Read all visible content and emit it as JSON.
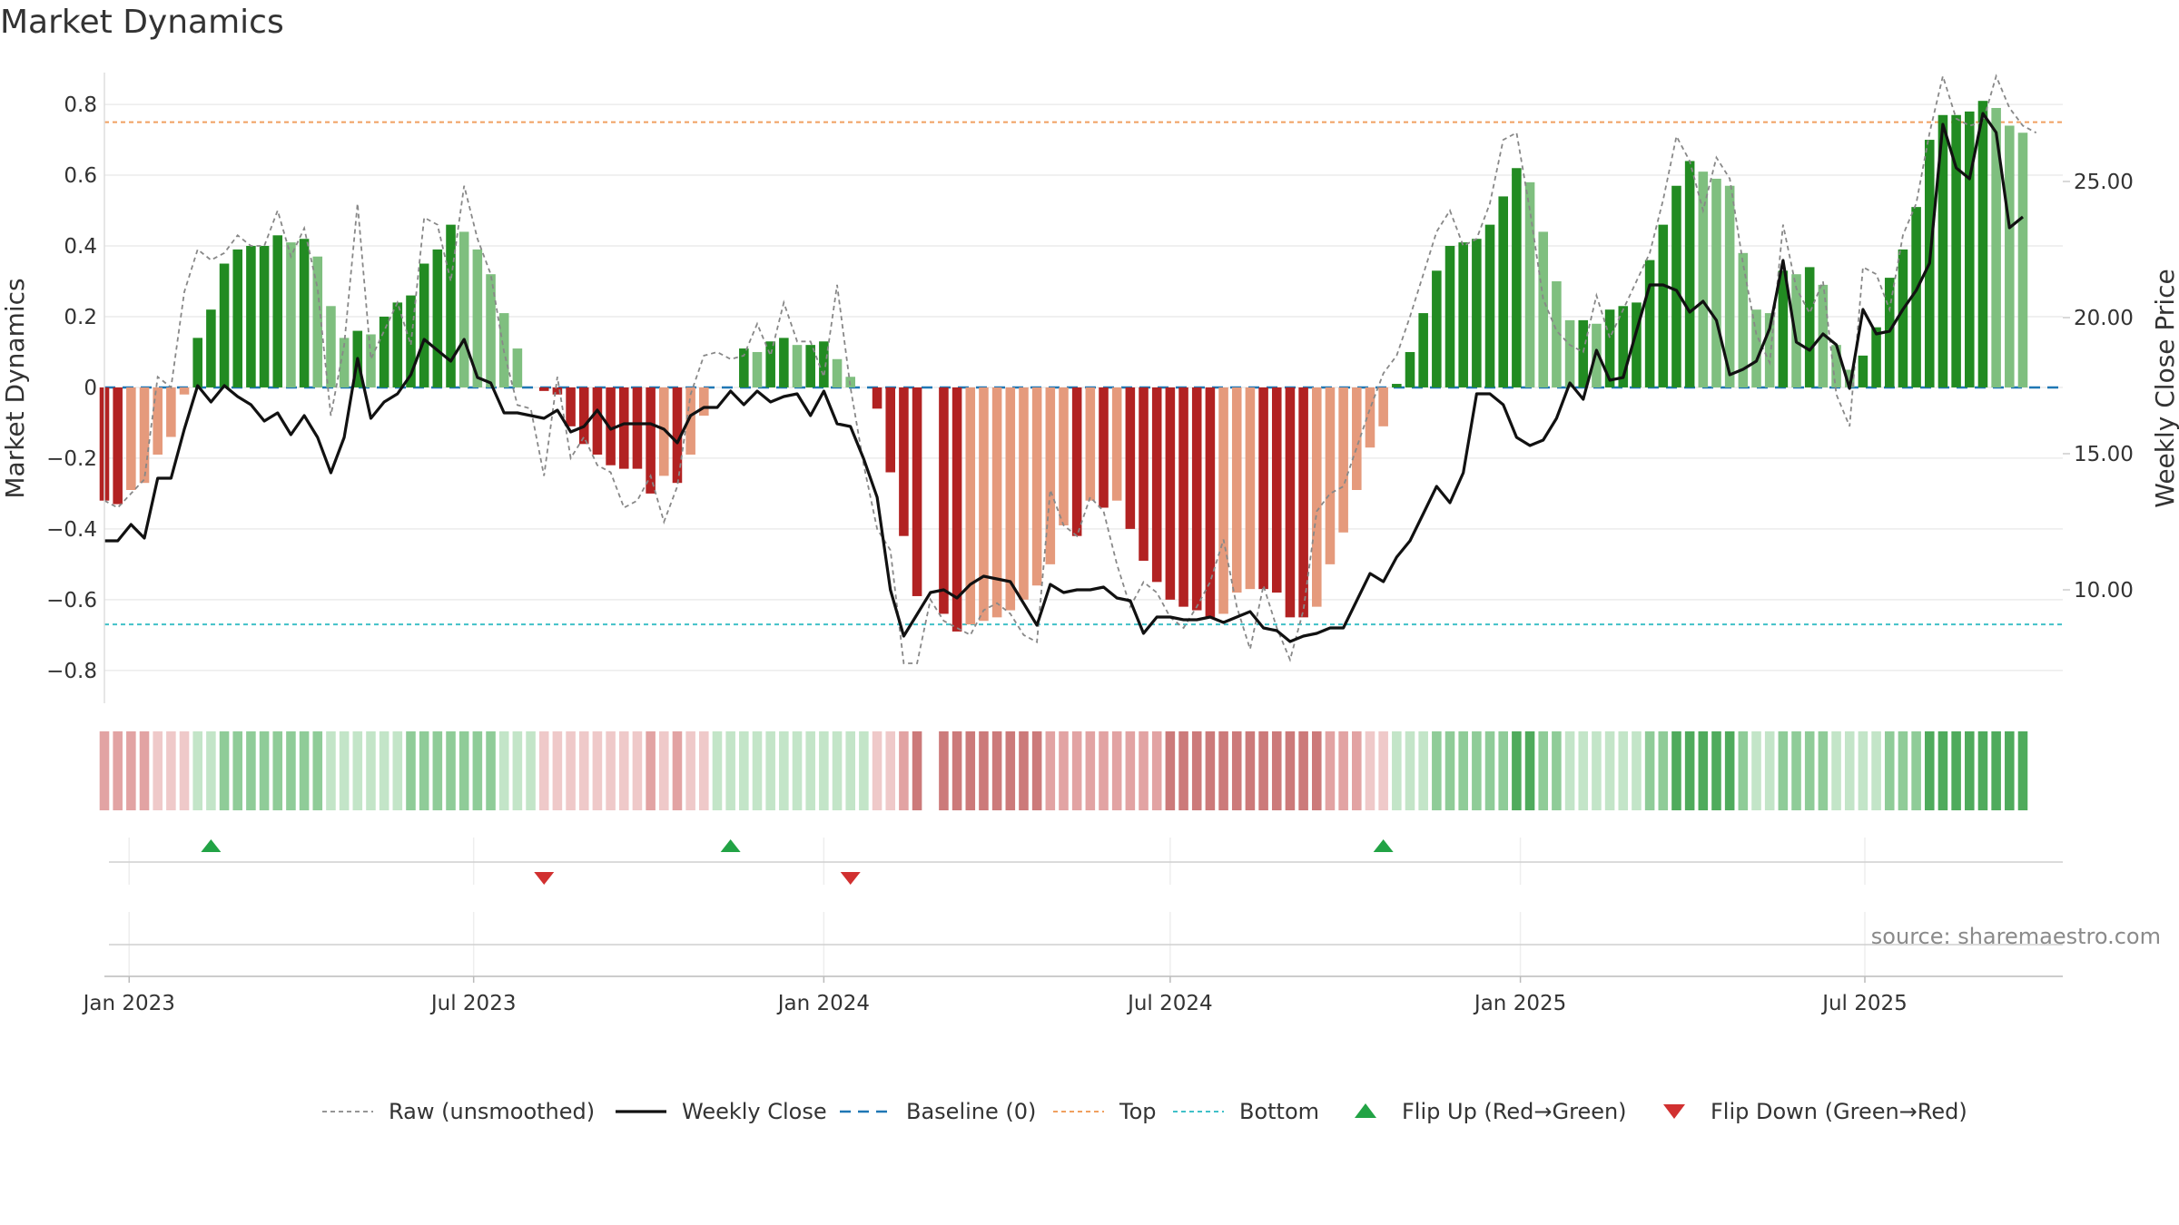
{
  "title": "Market Dynamics",
  "source": "source: sharemaestro.com",
  "chart_data": {
    "type": "bar",
    "title": "Market Dynamics",
    "ylabel_left": "Market Dynamics",
    "ylabel_right": "Weekly Close Price",
    "ylim_left": [
      -0.88,
      0.89
    ],
    "ylim_right": [
      6.0,
      29.0
    ],
    "left_ticks": [
      "0.8",
      "0.6",
      "0.4",
      "0.2",
      "0",
      "−0.2",
      "−0.4",
      "−0.6",
      "−0.8"
    ],
    "left_tick_values": [
      0.8,
      0.6,
      0.4,
      0.2,
      0,
      -0.2,
      -0.4,
      -0.6,
      -0.8
    ],
    "right_ticks": [
      "25.00",
      "20.00",
      "15.00",
      "10.00"
    ],
    "right_tick_values": [
      25,
      20,
      15,
      10
    ],
    "x_ticks": [
      "Jan 2023",
      "Jul 2023",
      "Jan 2024",
      "Jul 2024",
      "Jan 2025",
      "Jul 2025"
    ],
    "x_tick_dates": [
      "2023-01-01",
      "2023-07-01",
      "2024-01-01",
      "2024-07-01",
      "2025-01-01",
      "2025-07-01"
    ],
    "x_start": "2022-12-19",
    "x_end": "2025-10-13",
    "top_threshold": 0.75,
    "bottom_threshold": -0.67,
    "bar_colors": {
      "strong_green": "#228b22",
      "light_green": "#7fbf7f",
      "strong_red": "#b22222",
      "light_red": "#e59a7c"
    },
    "weeks_start": "2022-12-19",
    "bar_values": [
      -0.32,
      -0.33,
      -0.29,
      -0.27,
      -0.19,
      -0.14,
      -0.02,
      0.14,
      0.22,
      0.35,
      0.39,
      0.4,
      0.4,
      0.43,
      0.41,
      0.42,
      0.37,
      0.23,
      0.14,
      0.16,
      0.15,
      0.2,
      0.24,
      0.26,
      0.35,
      0.39,
      0.46,
      0.44,
      0.39,
      0.32,
      0.21,
      0.11,
      0.0,
      -0.01,
      -0.02,
      -0.11,
      -0.16,
      -0.19,
      -0.22,
      -0.23,
      -0.23,
      -0.3,
      -0.25,
      -0.27,
      -0.19,
      -0.08,
      0.0,
      0.0,
      0.11,
      0.1,
      0.13,
      0.14,
      0.12,
      0.12,
      0.13,
      0.08,
      0.03,
      0.0,
      -0.06,
      -0.24,
      -0.42,
      -0.59,
      0.0,
      -0.64,
      -0.69,
      -0.67,
      -0.66,
      -0.65,
      -0.63,
      -0.6,
      -0.56,
      -0.5,
      -0.39,
      -0.42,
      -0.32,
      -0.34,
      -0.32,
      -0.4,
      -0.49,
      -0.55,
      -0.6,
      -0.62,
      -0.63,
      -0.65,
      -0.64,
      -0.58,
      -0.57,
      -0.57,
      -0.58,
      -0.65,
      -0.65,
      -0.62,
      -0.5,
      -0.41,
      -0.29,
      -0.17,
      -0.11,
      0.01,
      0.1,
      0.21,
      0.33,
      0.4,
      0.41,
      0.42,
      0.46,
      0.54,
      0.62,
      0.58,
      0.44,
      0.3,
      0.19,
      0.19,
      0.18,
      0.22,
      0.23,
      0.24,
      0.36,
      0.46,
      0.57,
      0.64,
      0.61,
      0.59,
      0.57,
      0.38,
      0.22,
      0.21,
      0.33,
      0.32,
      0.34,
      0.29,
      0.12,
      0.05,
      0.09,
      0.17,
      0.31,
      0.39,
      0.51,
      0.7,
      0.77,
      0.77,
      0.78,
      0.81,
      0.79,
      0.74,
      0.72
    ],
    "raw_values": [
      -0.32,
      -0.34,
      -0.3,
      -0.26,
      0.03,
      0.0,
      0.27,
      0.39,
      0.36,
      0.38,
      0.43,
      0.4,
      0.4,
      0.5,
      0.37,
      0.45,
      0.28,
      -0.08,
      0.12,
      0.52,
      0.08,
      0.16,
      0.24,
      0.12,
      0.48,
      0.46,
      0.3,
      0.57,
      0.42,
      0.32,
      0.1,
      -0.05,
      -0.06,
      -0.25,
      0.03,
      -0.2,
      -0.14,
      -0.22,
      -0.24,
      -0.34,
      -0.32,
      -0.25,
      -0.38,
      -0.28,
      -0.02,
      0.09,
      0.1,
      0.08,
      0.09,
      0.18,
      0.09,
      0.24,
      0.13,
      0.13,
      0.03,
      0.29,
      0.0,
      -0.22,
      -0.4,
      -0.46,
      -0.78,
      -0.78,
      -0.6,
      -0.66,
      -0.68,
      -0.7,
      -0.63,
      -0.61,
      -0.64,
      -0.7,
      -0.72,
      -0.29,
      -0.39,
      -0.42,
      -0.31,
      -0.35,
      -0.5,
      -0.62,
      -0.55,
      -0.58,
      -0.65,
      -0.68,
      -0.62,
      -0.55,
      -0.43,
      -0.62,
      -0.74,
      -0.56,
      -0.68,
      -0.77,
      -0.63,
      -0.35,
      -0.3,
      -0.28,
      -0.17,
      -0.06,
      0.04,
      0.09,
      0.2,
      0.32,
      0.44,
      0.5,
      0.4,
      0.42,
      0.52,
      0.7,
      0.72,
      0.5,
      0.25,
      0.16,
      0.12,
      0.1,
      0.26,
      0.14,
      0.22,
      0.3,
      0.38,
      0.53,
      0.71,
      0.64,
      0.5,
      0.65,
      0.59,
      0.35,
      0.15,
      0.07,
      0.46,
      0.28,
      0.21,
      0.3,
      -0.02,
      -0.11,
      0.34,
      0.32,
      0.22,
      0.43,
      0.52,
      0.72,
      0.88,
      0.76,
      0.74,
      0.75,
      0.88,
      0.79,
      0.74,
      0.72
    ],
    "price_values": [
      11.8,
      11.8,
      12.4,
      11.9,
      14.1,
      14.1,
      15.9,
      17.5,
      16.9,
      17.5,
      17.1,
      16.8,
      16.2,
      16.5,
      15.7,
      16.4,
      15.6,
      14.3,
      15.6,
      18.5,
      16.3,
      16.9,
      17.2,
      17.9,
      19.2,
      18.8,
      18.4,
      19.2,
      17.8,
      17.6,
      16.5,
      16.5,
      16.4,
      16.3,
      16.6,
      15.8,
      16.0,
      16.6,
      15.9,
      16.1,
      16.1,
      16.1,
      15.9,
      15.4,
      16.4,
      16.7,
      16.7,
      17.3,
      16.8,
      17.3,
      16.9,
      17.1,
      17.2,
      16.4,
      17.3,
      16.1,
      16.0,
      14.8,
      13.4,
      10.0,
      8.3,
      9.1,
      9.9,
      10.0,
      9.7,
      10.2,
      10.5,
      10.4,
      10.3,
      9.5,
      8.7,
      10.2,
      9.9,
      10.0,
      10.0,
      10.1,
      9.7,
      9.6,
      8.4,
      9.0,
      9.0,
      8.9,
      8.9,
      9.0,
      8.8,
      9.0,
      9.2,
      8.6,
      8.5,
      8.1,
      8.3,
      8.4,
      8.6,
      8.6,
      9.6,
      10.6,
      10.3,
      11.2,
      11.8,
      12.8,
      13.8,
      13.2,
      14.3,
      17.2,
      17.2,
      16.8,
      15.6,
      15.3,
      15.5,
      16.3,
      17.6,
      17.0,
      18.8,
      17.7,
      17.8,
      19.5,
      21.2,
      21.2,
      21.0,
      20.2,
      20.6,
      19.9,
      17.9,
      18.1,
      18.4,
      19.6,
      22.1,
      19.1,
      18.8,
      19.4,
      19.0,
      17.4,
      20.3,
      19.4,
      19.5,
      20.3,
      21.0,
      22.0,
      27.1,
      25.5,
      25.1,
      27.5,
      26.8,
      23.3,
      23.7
    ],
    "regime_strip": {
      "colors": {
        "red_light": "#efc9c9",
        "red_mid": "#e2a3a3",
        "red_strong": "#cc7a7a",
        "green_light": "#c3e5c8",
        "green_mid": "#8fcc98",
        "green_strong": "#4fab5c"
      }
    },
    "flip_up_dates": [
      "2023-02-13",
      "2023-11-13",
      "2024-10-21"
    ],
    "flip_down_dates": [
      "2023-08-07",
      "2024-01-15"
    ],
    "series": [
      {
        "name": "Raw (unsmoothed)",
        "color": "#888888"
      },
      {
        "name": "Weekly Close",
        "color": "#111111"
      },
      {
        "name": "Baseline (0)",
        "color": "#1f77b4"
      },
      {
        "name": "Top",
        "color": "#f0a060"
      },
      {
        "name": "Bottom",
        "color": "#40c0c8"
      },
      {
        "name": "Flip Up (Red→Green)",
        "color": "#22a345"
      },
      {
        "name": "Flip Down (Green→Red)",
        "color": "#d13030"
      }
    ],
    "grid": true,
    "legend_position": "bottom"
  }
}
